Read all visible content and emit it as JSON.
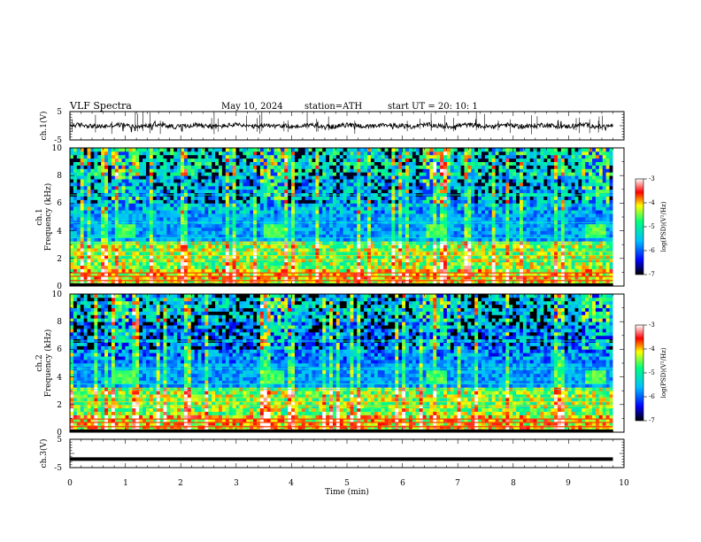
{
  "header": {
    "title": "VLF  Spectra",
    "date": "May 10, 2024",
    "station": "station=ATH",
    "start_ut": "start  UT  =    20: 10: 1"
  },
  "chart_data": [
    {
      "type": "line",
      "panel": "ch1-waveform",
      "ylabel": "ch.1(V)",
      "ylim": [
        -5,
        5
      ],
      "ytick_labels": [
        "5",
        "-5"
      ],
      "xlim": [
        0,
        10
      ],
      "baseline_value": 0,
      "trace_color": "#000000"
    },
    {
      "type": "heatmap",
      "panel": "ch1-spectrogram",
      "ylabel_line1": "ch.1",
      "ylabel_line2": "Frequency  (kHz)",
      "ylim": [
        0,
        10
      ],
      "ytick_labels": [
        "0",
        "2",
        "4",
        "6",
        "8",
        "10"
      ],
      "xlim": [
        0,
        10
      ],
      "colorbar": {
        "label": "log(PSD)(V²/Hz)",
        "range": [
          -7,
          -3
        ],
        "tick_labels": [
          "-3",
          "-4",
          "-5",
          "-6",
          "-7"
        ],
        "colors": [
          "#000000",
          "#0000ff",
          "#00c0ff",
          "#00ff80",
          "#ffff00",
          "#ff0000",
          "#ffffff"
        ]
      },
      "emission_bursts_min": [
        1.0,
        3.7,
        6.6,
        9.5
      ],
      "burst_band_khz": [
        3.6,
        4.4
      ],
      "data_end_min": 9.8
    },
    {
      "type": "heatmap",
      "panel": "ch2-spectrogram",
      "ylabel_line1": "ch.2",
      "ylabel_line2": "Frequency  (kHz)",
      "ylim": [
        0,
        10
      ],
      "ytick_labels": [
        "0",
        "2",
        "4",
        "6",
        "8",
        "10"
      ],
      "xlim": [
        0,
        10
      ],
      "colorbar": {
        "label": "log(PSD)(V²/Hz)",
        "range": [
          -7,
          -3
        ],
        "tick_labels": [
          "-3",
          "-4",
          "-5",
          "-6",
          "-7"
        ],
        "colors": [
          "#000000",
          "#0000ff",
          "#00c0ff",
          "#00ff80",
          "#ffff00",
          "#ff0000",
          "#ffffff"
        ]
      },
      "emission_bursts_min": [
        1.0,
        3.7,
        6.6,
        9.5
      ],
      "burst_band_khz": [
        3.6,
        4.4
      ],
      "data_end_min": 9.8
    },
    {
      "type": "line",
      "panel": "ch3-waveform",
      "ylabel": "ch.3(V)",
      "ylim": [
        -5,
        5
      ],
      "ytick_labels": [
        "5",
        "-5"
      ],
      "xlim": [
        0,
        10
      ],
      "constant_value": -2.0,
      "trace_color": "#000000"
    }
  ],
  "xaxis": {
    "label": "Time  (min)",
    "range": [
      0,
      10
    ],
    "tick_labels": [
      "0",
      "1",
      "2",
      "3",
      "4",
      "5",
      "6",
      "7",
      "8",
      "9",
      "10"
    ]
  }
}
